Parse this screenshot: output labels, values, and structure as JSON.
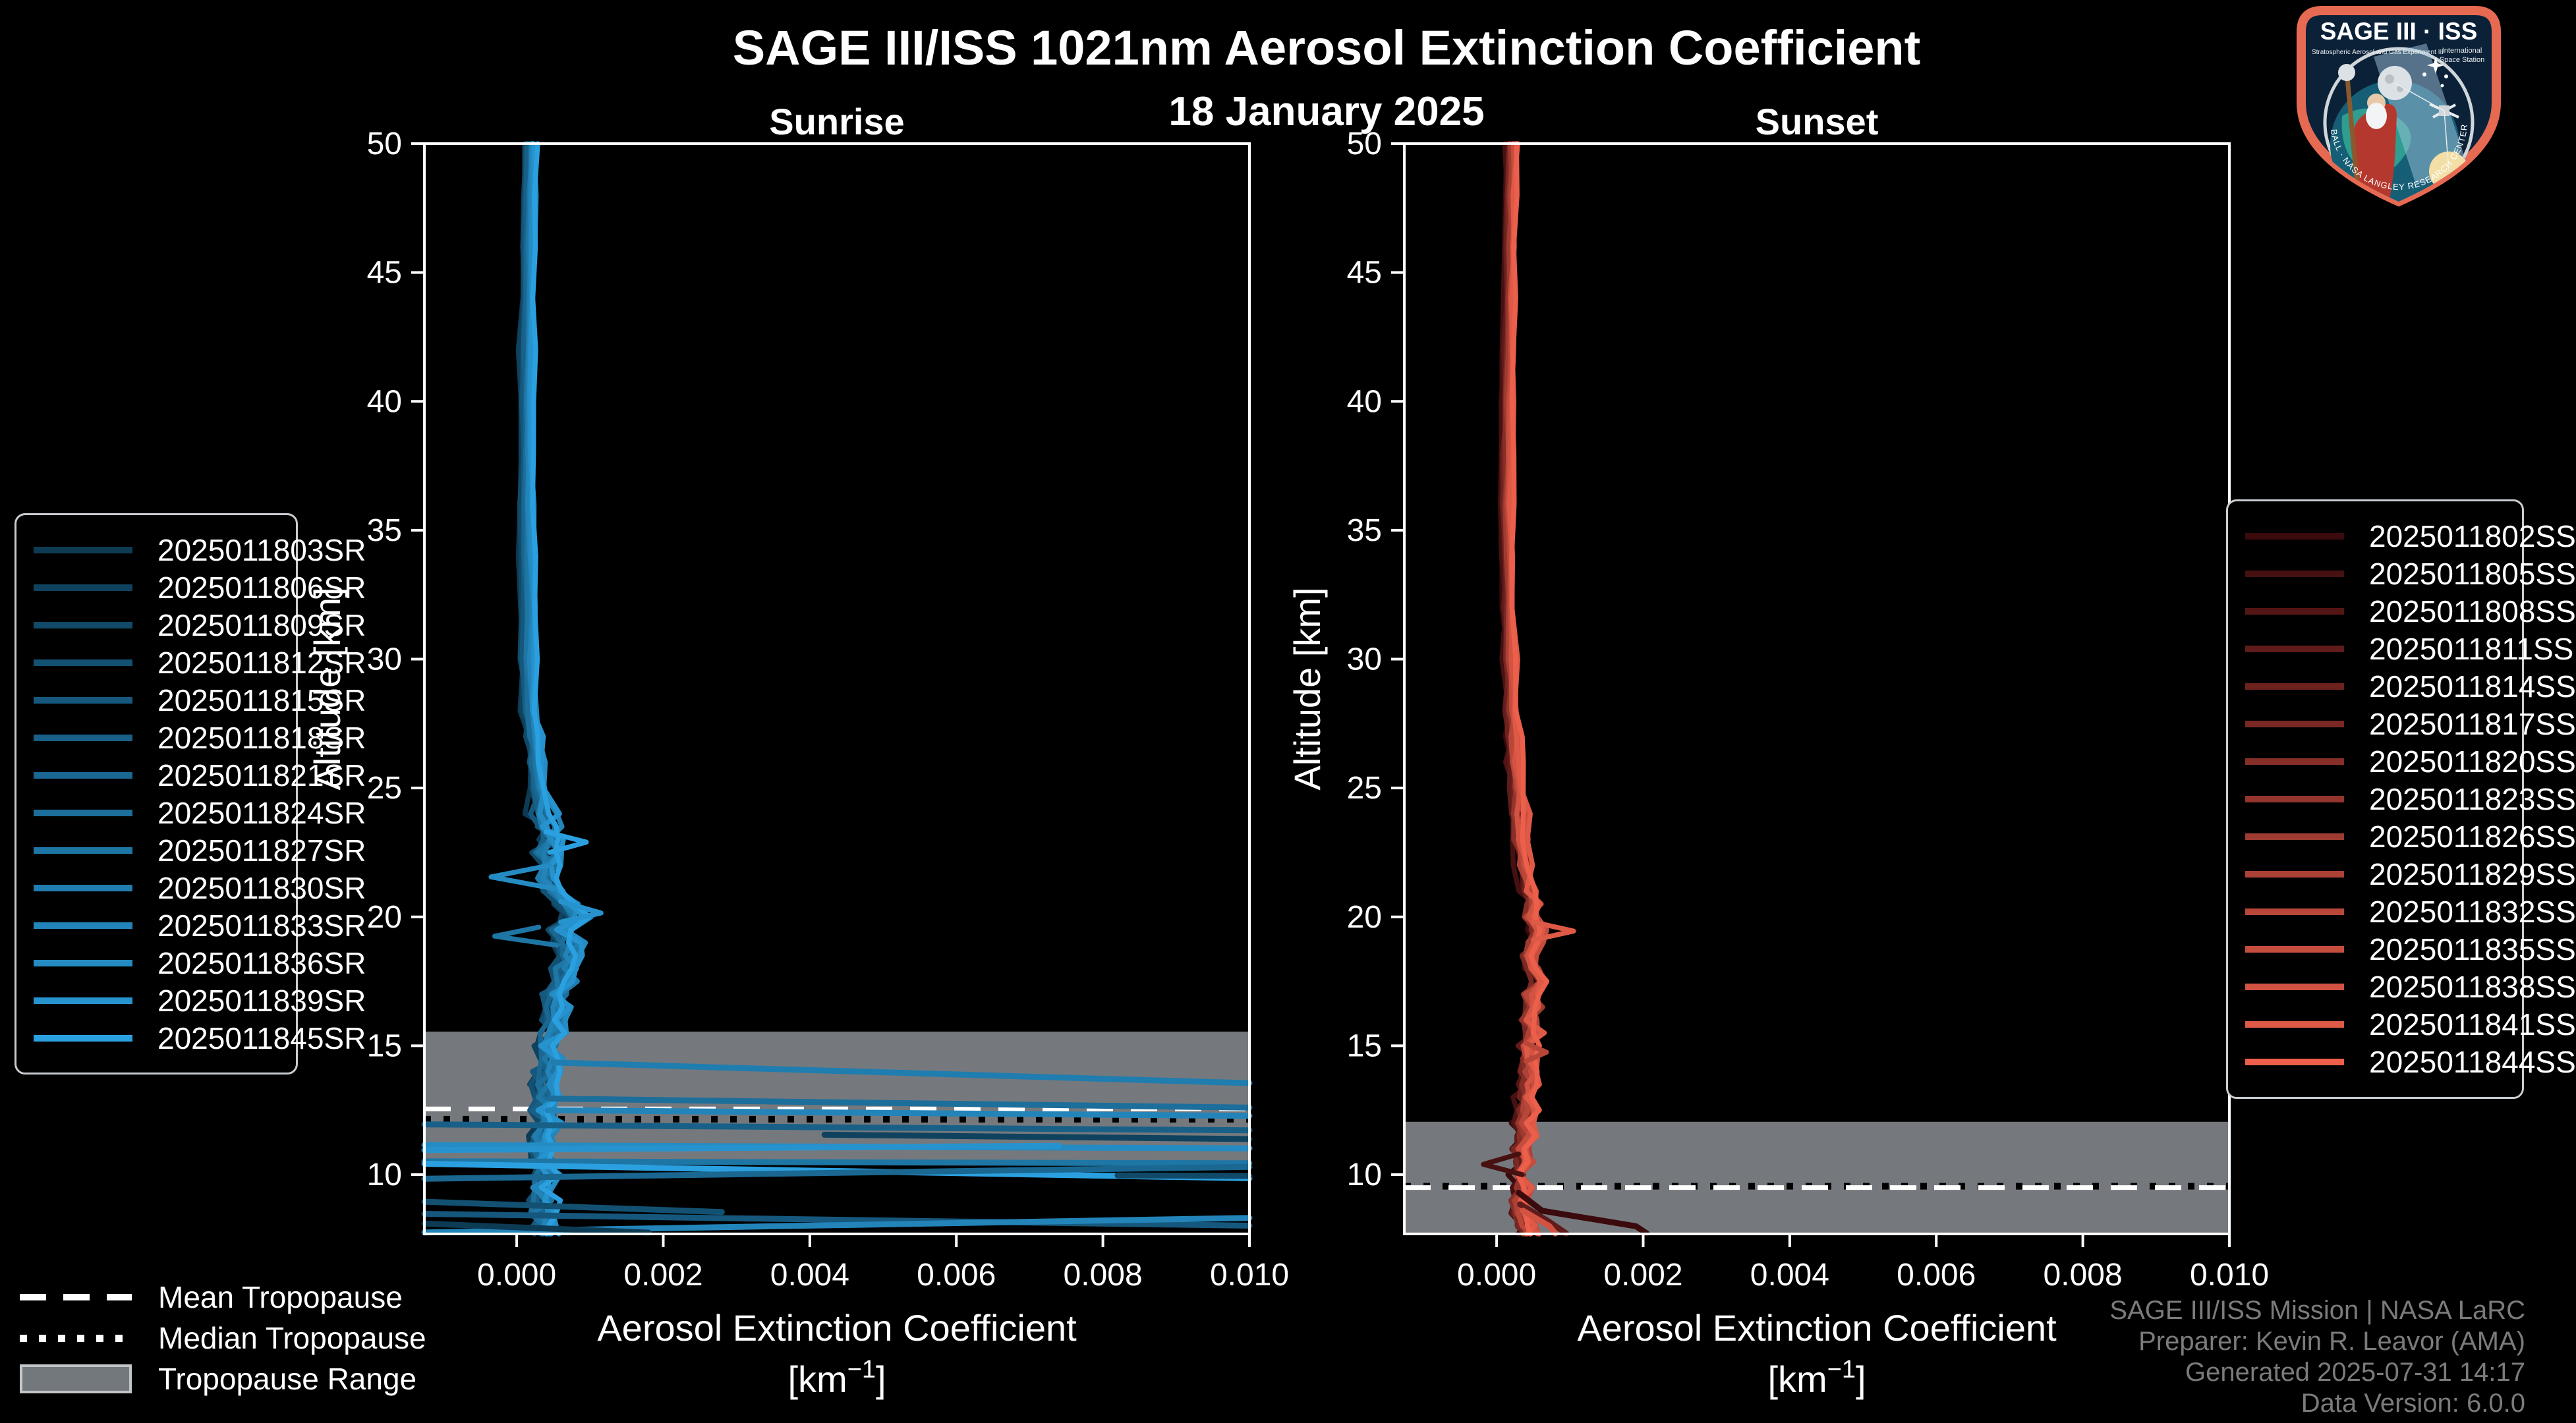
{
  "header": {
    "title": "SAGE III/ISS 1021nm Aerosol Extinction Coefficient",
    "date": "18 January 2025"
  },
  "logo": {
    "title": "SAGE III · ISS",
    "tagline": "Stratospheric Aerosol and Gas Experiment III",
    "intl1": "International",
    "intl2": "Space Station",
    "ring_text": "BALL · NASA LANGLEY RESEARCH CENTER · TAS-I · ESA"
  },
  "credits": {
    "line1": "SAGE III/ISS Mission | NASA LaRC",
    "line2": "Preparer: Kevin R. Leavor (AMA)",
    "line3": "Generated 2025-07-31 14:17",
    "line4": "Data Version: 6.0.0"
  },
  "tropopause_legend": {
    "mean": "Mean Tropopause",
    "median": "Median Tropopause",
    "range": "Tropopause Range"
  },
  "chart_data": {
    "type": "line",
    "title": "SAGE III/ISS 1021nm Aerosol Extinction Coefficient",
    "subtitle": "18 January 2025",
    "xlabel": {
      "line1": "Aerosol Extinction Coefficient",
      "unit_pre": "[km",
      "unit_sup": "−1",
      "unit_post": "]"
    },
    "ylabel": "Altitude [km]",
    "xlim": [
      -0.00126,
      0.01
    ],
    "ylim": [
      7.7,
      50
    ],
    "grid": false,
    "band_color": "#75797d",
    "x_ticks": {
      "values": [
        0,
        0.002,
        0.004,
        0.006,
        0.008,
        0.01
      ],
      "labels": [
        "0.000",
        "0.002",
        "0.004",
        "0.006",
        "0.008",
        "0.010"
      ]
    },
    "y_ticks": [
      50,
      45,
      40,
      35,
      30,
      25,
      20,
      15,
      10
    ],
    "panels": [
      {
        "id": "sunrise",
        "subtitle": "Sunrise",
        "legend_side": "left",
        "tropopause": {
          "mean": 12.55,
          "median": 12.15,
          "range": [
            10.4,
            15.55
          ]
        },
        "series": [
          {
            "label": "2025011803SR",
            "color": "#0d3b54"
          },
          {
            "label": "2025011806SR",
            "color": "#0f425e"
          },
          {
            "label": "2025011809SR",
            "color": "#114a68"
          },
          {
            "label": "2025011812SR",
            "color": "#135172"
          },
          {
            "label": "2025011815SR",
            "color": "#16587d"
          },
          {
            "label": "2025011818SR",
            "color": "#186087"
          },
          {
            "label": "2025011821SR",
            "color": "#1a6791"
          },
          {
            "label": "2025011824SR",
            "color": "#1c6e9b"
          },
          {
            "label": "2025011827SR",
            "color": "#1e76a5"
          },
          {
            "label": "2025011830SR",
            "color": "#207daf"
          },
          {
            "label": "2025011833SR",
            "color": "#2384b9"
          },
          {
            "label": "2025011836SR",
            "color": "#258bc3"
          },
          {
            "label": "2025011839SR",
            "color": "#2793ce"
          },
          {
            "label": "2025011845SR",
            "color": "#2ba0e0"
          }
        ],
        "jitter": {
          "amp_hi": 3e-05,
          "amp_mid": 7e-05,
          "amp_lo": 0.00016,
          "bias_step": 1.4e-05
        },
        "base_profile": [
          [
            50,
            0.00018
          ],
          [
            48,
            0.00017
          ],
          [
            46,
            0.00016
          ],
          [
            44,
            0.00015
          ],
          [
            42,
            0.00014
          ],
          [
            40,
            0.00014
          ],
          [
            38,
            0.00013
          ],
          [
            36,
            0.00013
          ],
          [
            34,
            0.00014
          ],
          [
            32,
            0.00015
          ],
          [
            30,
            0.00017
          ],
          [
            28,
            0.0002
          ],
          [
            27,
            0.00022
          ],
          [
            26,
            0.00026
          ],
          [
            25,
            0.0003
          ],
          [
            24,
            0.00036
          ],
          [
            23.5,
            0.00042
          ],
          [
            23,
            0.00052
          ],
          [
            22.5,
            0.00042
          ],
          [
            22,
            0.0005
          ],
          [
            21.5,
            0.0004
          ],
          [
            21,
            0.00052
          ],
          [
            20.5,
            0.0007
          ],
          [
            20,
            0.00082
          ],
          [
            19.5,
            0.00062
          ],
          [
            19,
            0.00072
          ],
          [
            18.5,
            0.00075
          ],
          [
            18,
            0.00062
          ],
          [
            17.5,
            0.00066
          ],
          [
            17,
            0.00052
          ],
          [
            16.5,
            0.00056
          ],
          [
            16,
            0.0005
          ],
          [
            15.5,
            0.00046
          ],
          [
            15,
            0.0004
          ],
          [
            14.5,
            0.00046
          ],
          [
            14,
            0.0004
          ],
          [
            13.5,
            0.00036
          ],
          [
            13,
            0.00042
          ],
          [
            12.5,
            0.00036
          ],
          [
            12,
            0.00042
          ],
          [
            11.5,
            0.00036
          ],
          [
            11,
            0.00032
          ],
          [
            10.5,
            0.00036
          ],
          [
            10,
            0.00042
          ],
          [
            9.5,
            0.00032
          ],
          [
            9,
            0.00036
          ],
          [
            8.5,
            0.00032
          ],
          [
            8,
            0.00038
          ],
          [
            7.7,
            0.00042
          ]
        ],
        "features": [
          {
            "series": 11,
            "points": [
              [
                22.0,
                0.00045
              ],
              [
                21.55,
                -0.00035
              ],
              [
                21.1,
                0.0005
              ]
            ]
          },
          {
            "series": 8,
            "points": [
              [
                19.6,
                0.0003
              ],
              [
                19.25,
                -0.0003
              ],
              [
                18.9,
                0.00055
              ]
            ]
          },
          {
            "series": 12,
            "points": [
              [
                20.6,
                0.0006
              ],
              [
                20.15,
                0.00115
              ],
              [
                19.8,
                0.0006
              ]
            ]
          },
          {
            "series": 13,
            "points": [
              [
                23.3,
                0.0004
              ],
              [
                22.9,
                0.00095
              ],
              [
                22.5,
                0.00045
              ]
            ]
          }
        ],
        "cloud_lines": [
          {
            "series": 9,
            "points": [
              [
                14.35,
                0.0005
              ],
              [
                13.55,
                0.0105
              ]
            ]
          },
          {
            "series": 7,
            "points": [
              [
                12.95,
                0.00045
              ],
              [
                12.6,
                0.0105
              ]
            ]
          },
          {
            "series": 10,
            "points": [
              [
                12.5,
                0.00042
              ],
              [
                12.28,
                0.0105
              ]
            ]
          },
          {
            "series": 5,
            "points": [
              [
                11.95,
                -0.0013
              ],
              [
                11.72,
                0.0105
              ]
            ]
          },
          {
            "series": 1,
            "points": [
              [
                11.55,
                0.0042
              ],
              [
                11.38,
                0.0105
              ]
            ]
          },
          {
            "series": 11,
            "points": [
              [
                11.15,
                -0.0013
              ],
              [
                11.02,
                0.0105
              ]
            ]
          },
          {
            "series": 12,
            "points": [
              [
                10.95,
                -0.0013
              ],
              [
                11.12,
                0.0074
              ]
            ]
          },
          {
            "series": 8,
            "points": [
              [
                10.52,
                -0.0013
              ],
              [
                10.44,
                0.0105
              ]
            ]
          },
          {
            "series": 13,
            "points": [
              [
                10.42,
                -0.0013
              ],
              [
                9.86,
                0.0105
              ]
            ]
          },
          {
            "series": 6,
            "points": [
              [
                9.84,
                -0.0013
              ],
              [
                10.3,
                0.0105
              ]
            ]
          },
          {
            "series": 2,
            "points": [
              [
                9.97,
                0.0082
              ],
              [
                9.95,
                0.0105
              ]
            ]
          },
          {
            "series": 4,
            "points": [
              [
                8.48,
                -0.0013
              ],
              [
                8.02,
                0.0105
              ]
            ]
          },
          {
            "series": 10,
            "points": [
              [
                7.76,
                -0.0013
              ],
              [
                8.32,
                0.0105
              ]
            ]
          },
          {
            "series": 3,
            "points": [
              [
                8.95,
                -0.0013
              ],
              [
                8.55,
                0.0028
              ]
            ]
          },
          {
            "series": 0,
            "points": [
              [
                8.1,
                -0.0013
              ],
              [
                7.75,
                0.0018
              ]
            ]
          }
        ]
      },
      {
        "id": "sunset",
        "subtitle": "Sunset",
        "legend_side": "right",
        "tropopause": {
          "mean": 9.5,
          "median": 9.55,
          "range": [
            7.7,
            12.05
          ]
        },
        "series": [
          {
            "label": "2025011802SS",
            "color": "#3a0a0c"
          },
          {
            "label": "2025011805SS",
            "color": "#471011"
          },
          {
            "label": "2025011808SS",
            "color": "#531615"
          },
          {
            "label": "2025011811SS",
            "color": "#601c1a"
          },
          {
            "label": "2025011814SS",
            "color": "#6d221e"
          },
          {
            "label": "2025011817SS",
            "color": "#792823"
          },
          {
            "label": "2025011820SS",
            "color": "#862e27"
          },
          {
            "label": "2025011823SS",
            "color": "#93352c"
          },
          {
            "label": "2025011826SS",
            "color": "#9f3b30"
          },
          {
            "label": "2025011829SS",
            "color": "#ac4135"
          },
          {
            "label": "2025011832SS",
            "color": "#b94739"
          },
          {
            "label": "2025011835SS",
            "color": "#c54d3e"
          },
          {
            "label": "2025011838SS",
            "color": "#d25342"
          },
          {
            "label": "2025011841SS",
            "color": "#df5947"
          },
          {
            "label": "2025011844SS",
            "color": "#eb5f4b"
          }
        ],
        "jitter": {
          "amp_hi": 3e-05,
          "amp_mid": 6e-05,
          "amp_lo": 0.0001,
          "bias_step": 1e-05
        },
        "base_profile": [
          [
            50,
            0.0002
          ],
          [
            48,
            0.00019
          ],
          [
            46,
            0.00018
          ],
          [
            44,
            0.00017
          ],
          [
            42,
            0.00016
          ],
          [
            40,
            0.00015
          ],
          [
            38,
            0.00014
          ],
          [
            36,
            0.00014
          ],
          [
            34,
            0.00015
          ],
          [
            32,
            0.00016
          ],
          [
            30,
            0.00018
          ],
          [
            28,
            0.0002
          ],
          [
            27,
            0.00022
          ],
          [
            26,
            0.00024
          ],
          [
            25,
            0.00027
          ],
          [
            24,
            0.0003
          ],
          [
            23,
            0.00034
          ],
          [
            22,
            0.00038
          ],
          [
            21,
            0.00042
          ],
          [
            20.5,
            0.00052
          ],
          [
            20,
            0.00046
          ],
          [
            19.5,
            0.00058
          ],
          [
            19,
            0.00052
          ],
          [
            18.5,
            0.00046
          ],
          [
            18,
            0.00052
          ],
          [
            17.5,
            0.00058
          ],
          [
            17,
            0.00046
          ],
          [
            16.5,
            0.00052
          ],
          [
            16,
            0.00044
          ],
          [
            15.5,
            0.0005
          ],
          [
            15,
            0.00042
          ],
          [
            14.5,
            0.00046
          ],
          [
            14,
            0.0004
          ],
          [
            13.5,
            0.00044
          ],
          [
            13,
            0.00038
          ],
          [
            12.5,
            0.00042
          ],
          [
            12,
            0.00036
          ],
          [
            11.5,
            0.0004
          ],
          [
            11,
            0.00034
          ],
          [
            10.5,
            0.00038
          ],
          [
            10,
            0.00032
          ],
          [
            9.5,
            0.00036
          ],
          [
            9,
            0.0003
          ],
          [
            8.5,
            0.00034
          ],
          [
            8,
            0.0004
          ],
          [
            7.7,
            0.00044
          ]
        ],
        "features": [
          {
            "series": 13,
            "points": [
              [
                19.8,
                0.0005
              ],
              [
                19.45,
                0.00105
              ],
              [
                19.1,
                0.0005
              ]
            ]
          },
          {
            "series": 10,
            "points": [
              [
                15.1,
                0.0004
              ],
              [
                14.75,
                0.00068
              ],
              [
                14.4,
                0.0004
              ]
            ]
          },
          {
            "series": 1,
            "points": [
              [
                10.8,
                0.0003
              ],
              [
                10.4,
                -0.00018
              ],
              [
                10.0,
                0.00035
              ]
            ]
          }
        ],
        "cloud_lines": [
          {
            "series": 0,
            "points": [
              [
                9.3,
                0.0003
              ],
              [
                8.6,
                0.00062
              ],
              [
                8.0,
                0.0019
              ],
              [
                7.72,
                0.00205
              ]
            ]
          },
          {
            "series": 3,
            "points": [
              [
                8.85,
                0.00032
              ],
              [
                8.2,
                0.0007
              ],
              [
                7.72,
                0.00095
              ]
            ]
          },
          {
            "series": 12,
            "points": [
              [
                8.6,
                0.00036
              ],
              [
                8.0,
                0.00072
              ],
              [
                7.72,
                0.0008
              ]
            ]
          }
        ]
      }
    ]
  }
}
